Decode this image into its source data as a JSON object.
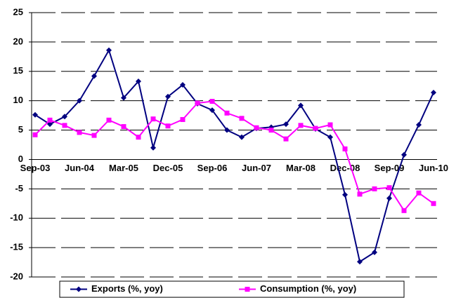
{
  "chart_data": {
    "type": "line",
    "categories": [
      "Sep-03",
      null,
      null,
      "Jun-04",
      null,
      null,
      "Mar-05",
      null,
      null,
      "Dec-05",
      null,
      null,
      "Sep-06",
      null,
      null,
      "Jun-07",
      null,
      null,
      "Mar-08",
      null,
      null,
      "Dec-08",
      null,
      null,
      "Sep-09",
      null,
      null,
      "Jun-10"
    ],
    "series": [
      {
        "name": "Exports (%, yoy)",
        "color": "#000080",
        "marker": "diamond",
        "values": [
          7.6,
          6.0,
          7.3,
          10.0,
          14.2,
          18.6,
          10.5,
          13.3,
          2.0,
          10.7,
          12.7,
          9.5,
          8.4,
          5.0,
          3.8,
          5.3,
          5.5,
          6.0,
          9.2,
          5.2,
          3.8,
          -6.0,
          -17.4,
          -15.8,
          -6.6,
          0.8,
          5.9,
          11.4
        ]
      },
      {
        "name": "Consumption (%, yoy)",
        "color": "#ff00ff",
        "marker": "square",
        "values": [
          4.2,
          6.7,
          5.8,
          4.6,
          4.1,
          6.7,
          5.6,
          3.8,
          6.9,
          5.7,
          6.8,
          9.6,
          9.9,
          7.9,
          7.0,
          5.4,
          5.0,
          3.5,
          5.8,
          5.3,
          5.9,
          1.8,
          -5.9,
          -5.0,
          -4.8,
          -8.7,
          -5.7,
          -7.5
        ]
      }
    ],
    "ylim": [
      -20,
      25
    ],
    "yticks": [
      -20,
      -15,
      -10,
      -5,
      0,
      5,
      10,
      15,
      20,
      25
    ],
    "grid": true,
    "legend": "bottom"
  }
}
